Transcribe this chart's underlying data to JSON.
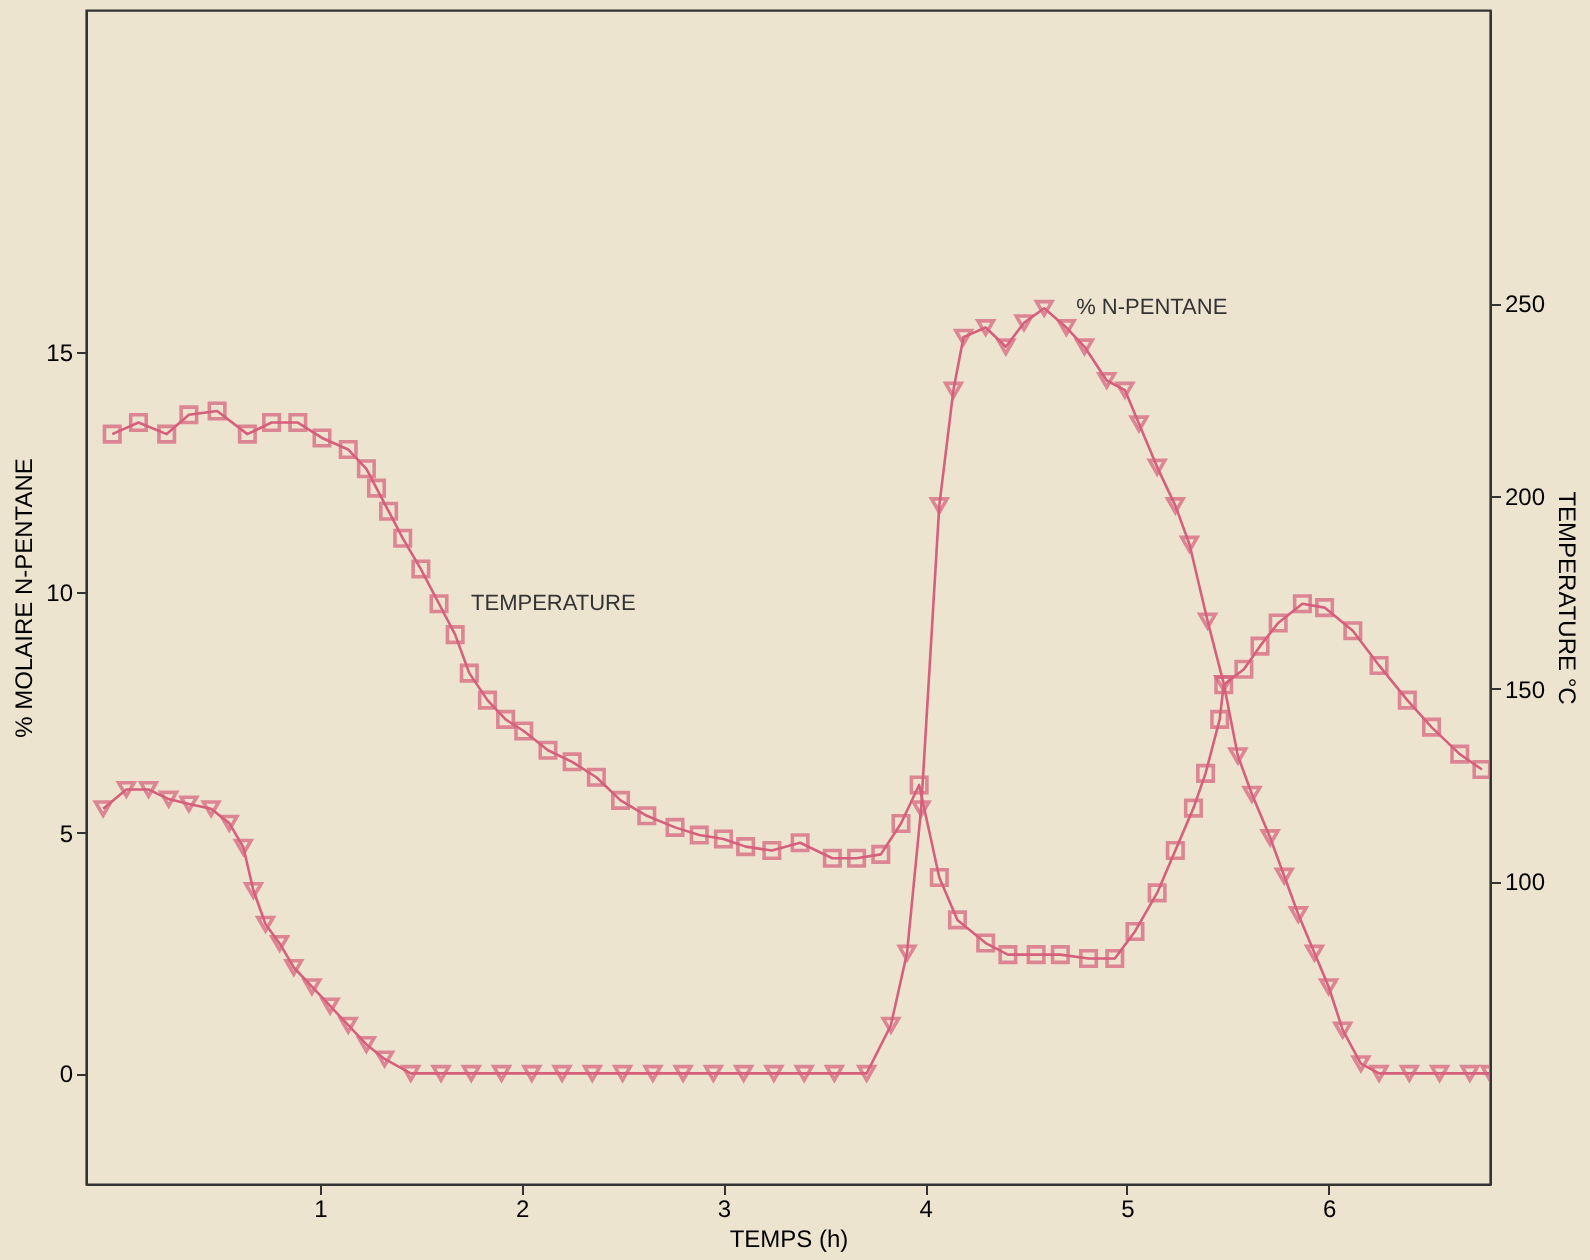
{
  "chart_data": {
    "type": "line",
    "xlabel": "TEMPS (h)",
    "ylabel": "% MOLAIRE N-PENTANE",
    "y2label": "TEMPERATURE °C",
    "xlim": [
      -0.16,
      6.8
    ],
    "xticks": [
      1,
      2,
      3,
      4,
      5,
      6
    ],
    "ylim": [
      -2.3,
      22.1
    ],
    "yticks": [
      0,
      5,
      10,
      15
    ],
    "y2lim": [
      21.5,
      326
    ],
    "y2ticks": [
      100,
      150,
      200,
      250
    ],
    "grid": false,
    "line_style": "solid",
    "series": [
      {
        "name": "% N-PENTANE",
        "color": "#d65f7c",
        "marker": "triangle",
        "x": [
          -0.075,
          0.04,
          0.15,
          0.25,
          0.35,
          0.46,
          0.55,
          0.62,
          0.67,
          0.73,
          0.8,
          0.87,
          0.96,
          1.05,
          1.14,
          1.23,
          1.32,
          1.45,
          1.6,
          1.75,
          1.9,
          2.05,
          2.2,
          2.35,
          2.5,
          2.65,
          2.8,
          2.95,
          3.1,
          3.25,
          3.4,
          3.55,
          3.71,
          3.83,
          3.91,
          3.98,
          4.07,
          4.14,
          4.19,
          4.3,
          4.4,
          4.49,
          4.59,
          4.7,
          4.79,
          4.9,
          4.99,
          5.06,
          5.15,
          5.24,
          5.31,
          5.4,
          5.48,
          5.55,
          5.62,
          5.71,
          5.78,
          5.85,
          5.93,
          6.0,
          6.07,
          6.16,
          6.25,
          6.4,
          6.55,
          6.7,
          6.8
        ],
        "values": [
          5.5,
          5.9,
          5.9,
          5.7,
          5.6,
          5.5,
          5.2,
          4.7,
          3.8,
          3.1,
          2.7,
          2.2,
          1.8,
          1.4,
          1.0,
          0.6,
          0.3,
          0,
          0,
          0,
          0,
          0,
          0,
          0,
          0,
          0,
          0,
          0,
          0,
          0,
          0,
          0,
          0,
          1.0,
          2.5,
          5.5,
          11.8,
          14.2,
          15.3,
          15.5,
          15.1,
          15.6,
          15.9,
          15.5,
          15.1,
          14.4,
          14.2,
          13.5,
          12.6,
          11.8,
          11.0,
          9.4,
          8.1,
          6.6,
          5.8,
          4.9,
          4.1,
          3.3,
          2.5,
          1.8,
          0.9,
          0.2,
          0,
          0,
          0,
          0,
          0
        ]
      },
      {
        "name": "TEMPERATURE",
        "color": "#d65f7c",
        "marker": "square",
        "axis": "y2",
        "x": [
          -0.03,
          0.1,
          0.24,
          0.35,
          0.49,
          0.64,
          0.76,
          0.89,
          1.01,
          1.14,
          1.23,
          1.28,
          1.34,
          1.41,
          1.5,
          1.59,
          1.67,
          1.74,
          1.83,
          1.92,
          2.01,
          2.13,
          2.25,
          2.37,
          2.49,
          2.62,
          2.76,
          2.88,
          3.0,
          3.11,
          3.24,
          3.38,
          3.54,
          3.66,
          3.78,
          3.88,
          3.97,
          4.07,
          4.16,
          4.3,
          4.41,
          4.55,
          4.67,
          4.81,
          4.94,
          5.04,
          5.15,
          5.24,
          5.33,
          5.39,
          5.46,
          5.48,
          5.58,
          5.66,
          5.75,
          5.87,
          5.98,
          6.12,
          6.25,
          6.39,
          6.51,
          6.65,
          6.76
        ],
        "values": [
          216,
          219,
          216,
          221,
          222,
          216,
          219,
          219,
          215,
          212,
          207,
          202,
          196,
          189,
          181,
          172,
          164,
          154,
          147,
          142,
          139,
          134,
          131,
          127,
          121,
          117,
          114,
          112,
          111,
          109,
          108,
          110,
          106,
          106,
          107,
          115,
          125,
          101,
          90,
          84,
          81,
          81,
          81,
          80,
          80,
          87,
          97,
          108,
          119,
          128,
          142,
          151,
          155,
          161,
          167,
          172,
          171,
          165,
          156,
          147,
          140,
          133,
          129
        ]
      }
    ]
  }
}
